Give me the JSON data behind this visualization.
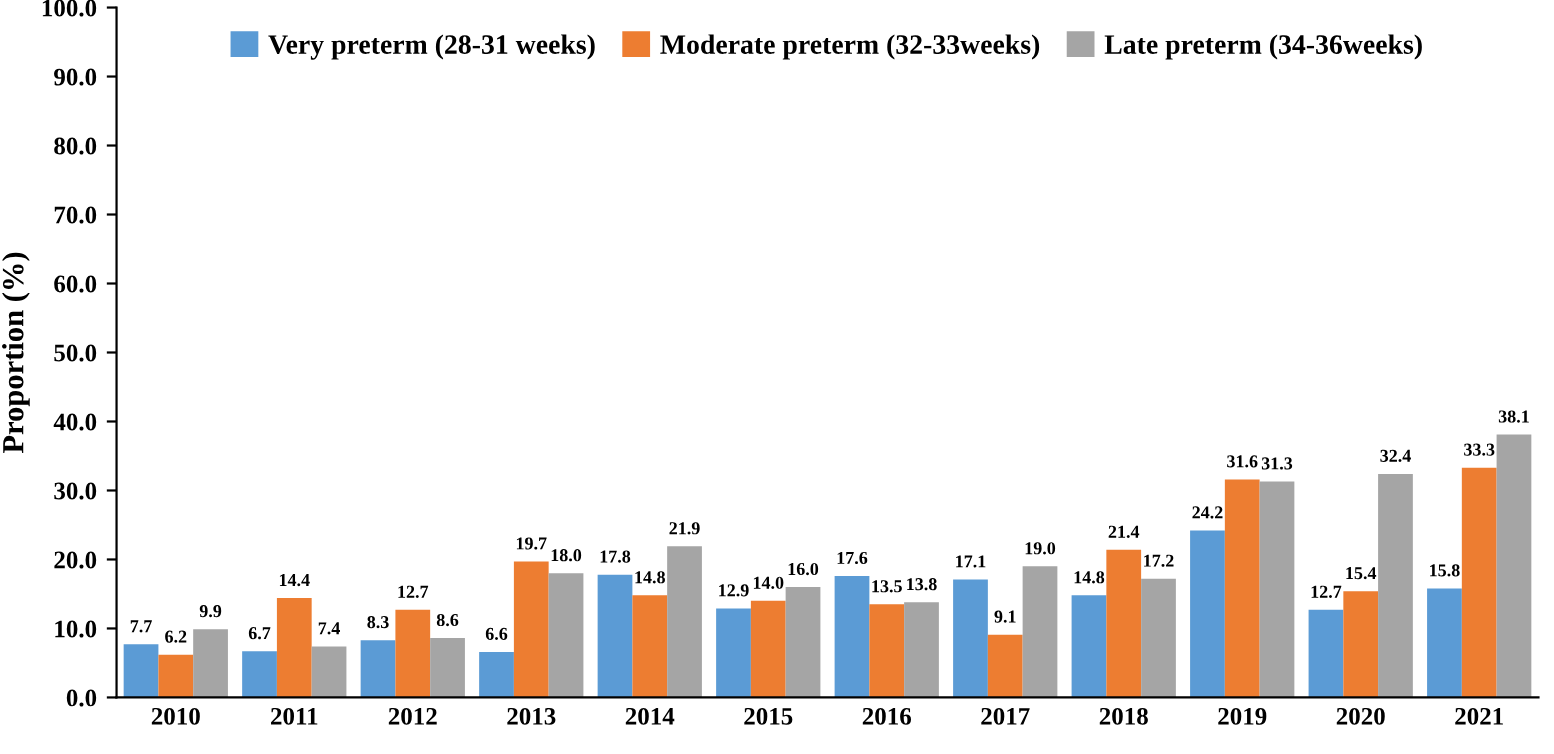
{
  "chart_data": {
    "type": "bar",
    "ylabel": "Proportion (%)",
    "categories": [
      "2010",
      "2011",
      "2012",
      "2013",
      "2014",
      "2015",
      "2016",
      "2017",
      "2018",
      "2019",
      "2020",
      "2021"
    ],
    "series": [
      {
        "name": "Very preterm (28-31 weeks)",
        "color": "#5b9bd5",
        "values": [
          7.7,
          6.7,
          8.3,
          6.6,
          17.8,
          12.9,
          17.6,
          17.1,
          14.8,
          24.2,
          12.7,
          15.8
        ],
        "value_labels": [
          "7.7",
          "6.7",
          "8.3",
          "6.6",
          "17.8",
          "12.9",
          "17.6",
          "17.1",
          "14.8",
          "24.2",
          "12.7",
          "15.8"
        ]
      },
      {
        "name": "Moderate preterm (32-33weeks)",
        "color": "#ed7d31",
        "values": [
          6.2,
          14.4,
          12.7,
          19.7,
          14.8,
          14.0,
          13.5,
          9.1,
          21.4,
          31.6,
          15.4,
          33.3
        ],
        "value_labels": [
          "6.2",
          "14.4",
          "12.7",
          "19.7",
          "14.8",
          "14.0",
          "13.5",
          "9.1",
          "21.4",
          "31.6",
          "15.4",
          "33.3"
        ]
      },
      {
        "name": "Late preterm (34-36weeks)",
        "color": "#a5a5a5",
        "values": [
          9.9,
          7.4,
          8.6,
          18.0,
          21.9,
          16.0,
          13.8,
          19.0,
          17.2,
          31.3,
          32.4,
          38.1
        ],
        "value_labels": [
          "9.9",
          "7.4",
          "8.6",
          "18.0",
          "21.9",
          "16.0",
          "13.8",
          "19.0",
          "17.2",
          "31.3",
          "32.4",
          "38.1"
        ]
      }
    ],
    "ylim": [
      0,
      100
    ],
    "yticks": [
      {
        "value": 0,
        "label": "0.0"
      },
      {
        "value": 10,
        "label": "10.0"
      },
      {
        "value": 20,
        "label": "20.0"
      },
      {
        "value": 30,
        "label": "30.0"
      },
      {
        "value": 40,
        "label": "40.0"
      },
      {
        "value": 50,
        "label": "50.0"
      },
      {
        "value": 60,
        "label": "60.0"
      },
      {
        "value": 70,
        "label": "70.0"
      },
      {
        "value": 80,
        "label": "80.0"
      },
      {
        "value": 90,
        "label": "90.0"
      },
      {
        "value": 100,
        "label": "100.0"
      }
    ],
    "grid": false,
    "legend": "top"
  }
}
